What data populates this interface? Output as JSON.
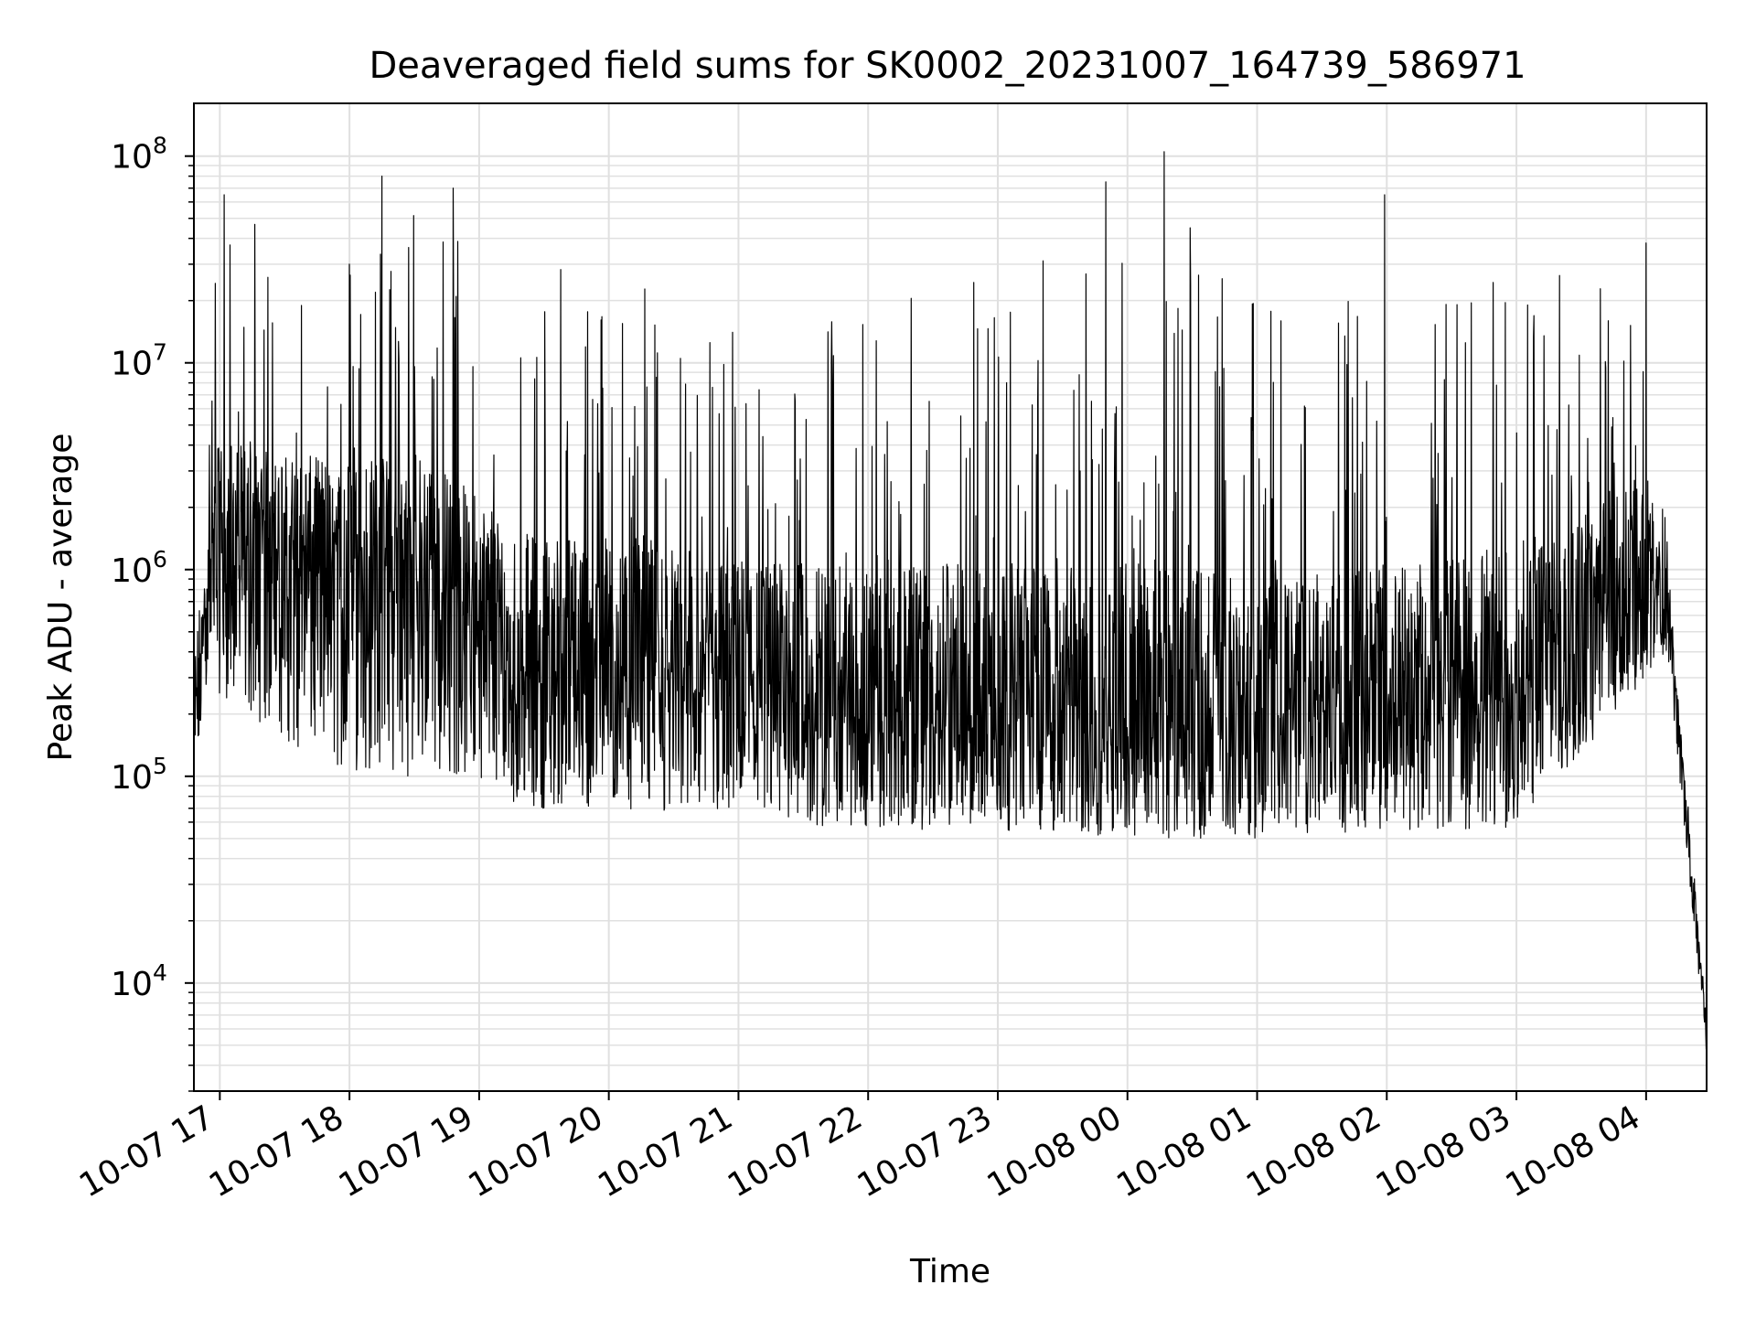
{
  "chart_data": {
    "type": "line",
    "title": "Deaveraged field sums for SK0002_20231007_164739_586971",
    "xlabel": "Time",
    "ylabel": "Peak ADU - average",
    "yscale": "log",
    "xlim": [
      "2023-10-07 16:48",
      "2023-10-08 04:28"
    ],
    "ylim": [
      3000,
      180000000
    ],
    "grid": true,
    "line_color": "#000000",
    "grid_color": "#e0e0e0",
    "x_ticks": [
      {
        "value": "2023-10-07 17:00",
        "label": "10-07 17"
      },
      {
        "value": "2023-10-07 18:00",
        "label": "10-07 18"
      },
      {
        "value": "2023-10-07 19:00",
        "label": "10-07 19"
      },
      {
        "value": "2023-10-07 20:00",
        "label": "10-07 20"
      },
      {
        "value": "2023-10-07 21:00",
        "label": "10-07 21"
      },
      {
        "value": "2023-10-07 22:00",
        "label": "10-07 22"
      },
      {
        "value": "2023-10-07 23:00",
        "label": "10-07 23"
      },
      {
        "value": "2023-10-08 00:00",
        "label": "10-08 00"
      },
      {
        "value": "2023-10-08 01:00",
        "label": "10-08 01"
      },
      {
        "value": "2023-10-08 02:00",
        "label": "10-08 02"
      },
      {
        "value": "2023-10-08 03:00",
        "label": "10-08 03"
      },
      {
        "value": "2023-10-08 04:00",
        "label": "10-08 04"
      }
    ],
    "y_ticks": [
      {
        "value": 10000,
        "base": "10",
        "exp": "4"
      },
      {
        "value": 100000,
        "base": "10",
        "exp": "5"
      },
      {
        "value": 1000000,
        "base": "10",
        "exp": "6"
      },
      {
        "value": 10000000,
        "base": "10",
        "exp": "7"
      },
      {
        "value": 100000000,
        "base": "10",
        "exp": "8"
      }
    ],
    "envelope": [
      {
        "x": "2023-10-07 16:48",
        "low": 60000,
        "base": 150000,
        "high": 1800000
      },
      {
        "x": "2023-10-07 16:54",
        "low": 300000,
        "base": 800000,
        "high": 8000000
      },
      {
        "x": "2023-10-07 17:00",
        "low": 250000,
        "base": 1000000,
        "high": 60000000
      },
      {
        "x": "2023-10-07 17:30",
        "low": 150000,
        "base": 1000000,
        "high": 40000000
      },
      {
        "x": "2023-10-07 18:00",
        "low": 100000,
        "base": 900000,
        "high": 40000000
      },
      {
        "x": "2023-10-07 18:30",
        "low": 100000,
        "base": 800000,
        "high": 70000000
      },
      {
        "x": "2023-10-07 19:00",
        "low": 100000,
        "base": 500000,
        "high": 40000000
      },
      {
        "x": "2023-10-07 19:20",
        "low": 70000,
        "base": 300000,
        "high": 30000000
      },
      {
        "x": "2023-10-07 20:00",
        "low": 70000,
        "base": 300000,
        "high": 30000000
      },
      {
        "x": "2023-10-07 21:00",
        "low": 60000,
        "base": 250000,
        "high": 20000000
      },
      {
        "x": "2023-10-07 22:00",
        "low": 55000,
        "base": 200000,
        "high": 20000000
      },
      {
        "x": "2023-10-07 23:00",
        "low": 55000,
        "base": 180000,
        "high": 30000000
      },
      {
        "x": "2023-10-08 00:00",
        "low": 50000,
        "base": 160000,
        "high": 50000000
      },
      {
        "x": "2023-10-08 01:00",
        "low": 50000,
        "base": 180000,
        "high": 20000000
      },
      {
        "x": "2023-10-08 02:00",
        "low": 55000,
        "base": 200000,
        "high": 20000000
      },
      {
        "x": "2023-10-08 03:00",
        "low": 55000,
        "base": 250000,
        "high": 30000000
      },
      {
        "x": "2023-10-08 04:00",
        "low": 300000,
        "base": 900000,
        "high": 30000000
      },
      {
        "x": "2023-10-08 04:10",
        "low": 400000,
        "base": 700000,
        "high": 1500000
      },
      {
        "x": "2023-10-08 04:20",
        "low": 30000,
        "base": 50000,
        "high": 60000
      },
      {
        "x": "2023-10-08 04:28",
        "low": 4500,
        "base": 6000,
        "high": 9000
      }
    ],
    "notable_peaks": [
      {
        "x": "2023-10-07 17:02",
        "y": 65000000
      },
      {
        "x": "2023-10-07 18:15",
        "y": 80000000
      },
      {
        "x": "2023-10-07 18:48",
        "y": 70000000
      },
      {
        "x": "2023-10-07 23:50",
        "y": 75000000
      },
      {
        "x": "2023-10-08 00:17",
        "y": 105000000
      },
      {
        "x": "2023-10-08 00:29",
        "y": 45000000
      },
      {
        "x": "2023-10-08 01:59",
        "y": 65000000
      },
      {
        "x": "2023-10-08 04:00",
        "y": 38000000
      }
    ]
  }
}
